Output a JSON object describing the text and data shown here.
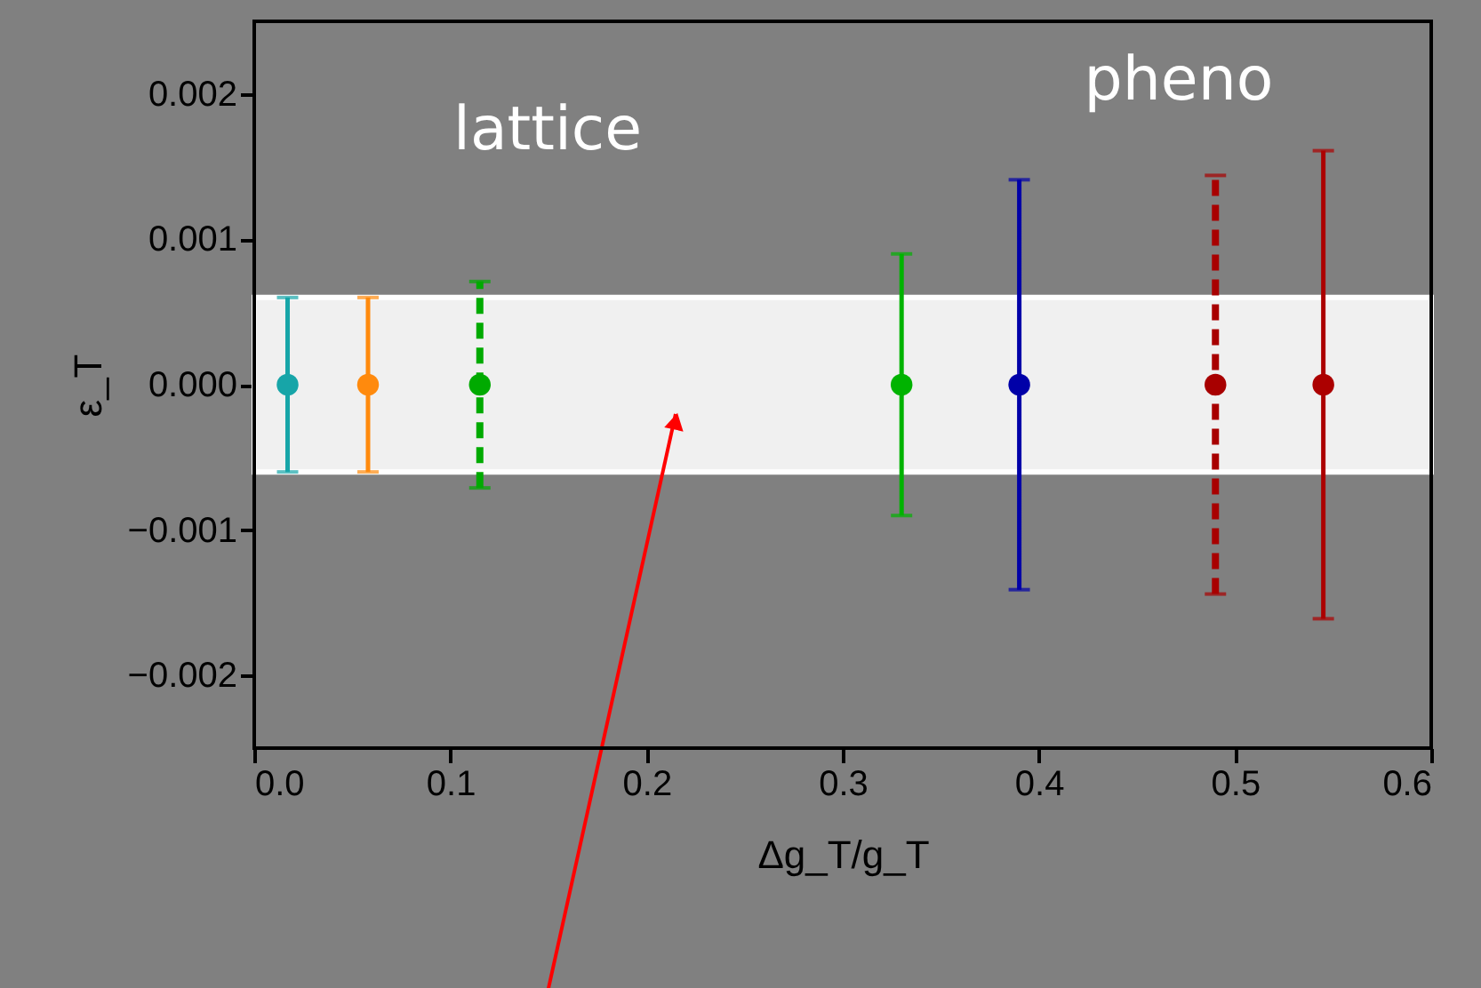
{
  "chart_data": {
    "type": "scatter",
    "xlabel": "Δg_T/g_T",
    "ylabel": "ε_T",
    "xlim": [
      0,
      0.6
    ],
    "ylim": [
      -0.0025,
      0.0025
    ],
    "xticks": [
      {
        "value": 0,
        "label": "0.0"
      },
      0.1,
      0.2,
      0.3,
      0.4,
      0.5,
      0.6
    ],
    "yticks": [
      {
        "value": -0.002,
        "label": "−0.002"
      },
      {
        "value": -0.001,
        "label": "−0.001"
      },
      {
        "value": 0,
        "label": "0.000"
      },
      0.001,
      0.002
    ],
    "grid": false,
    "marker": "circle",
    "bands": [
      {
        "axis": "y",
        "from": -0.0006,
        "to": 0.0006,
        "color": "#f0f0f0"
      }
    ],
    "annotations": [
      "lattice",
      "pheno"
    ],
    "series": [
      {
        "color": "#17a5a8",
        "x": [
          0.017
        ],
        "values": [
          0
        ],
        "errors": [
          0.0006
        ],
        "line_style": "solid"
      },
      {
        "color": "#ff8a0d",
        "x": [
          0.058
        ],
        "values": [
          0
        ],
        "errors": [
          0.0006
        ],
        "line_style": "solid"
      },
      {
        "color": "#00aa00",
        "x": [
          0.115
        ],
        "values": [
          0
        ],
        "errors": [
          0.00071
        ],
        "line_style": "dashed"
      },
      {
        "color": "#00b300",
        "x": [
          0.33
        ],
        "values": [
          0
        ],
        "errors": [
          0.0009
        ],
        "line_style": "solid"
      },
      {
        "color": "#0000a8",
        "x": [
          0.39
        ],
        "values": [
          0
        ],
        "errors": [
          0.00141
        ],
        "line_style": "solid"
      },
      {
        "color": "#a80000",
        "x": [
          0.49
        ],
        "values": [
          0
        ],
        "errors": [
          0.00144
        ],
        "line_style": "dashed"
      },
      {
        "color": "#ac0000",
        "x": [
          0.545
        ],
        "values": [
          0
        ],
        "errors": [
          0.00161
        ],
        "line_style": "solid"
      }
    ]
  }
}
